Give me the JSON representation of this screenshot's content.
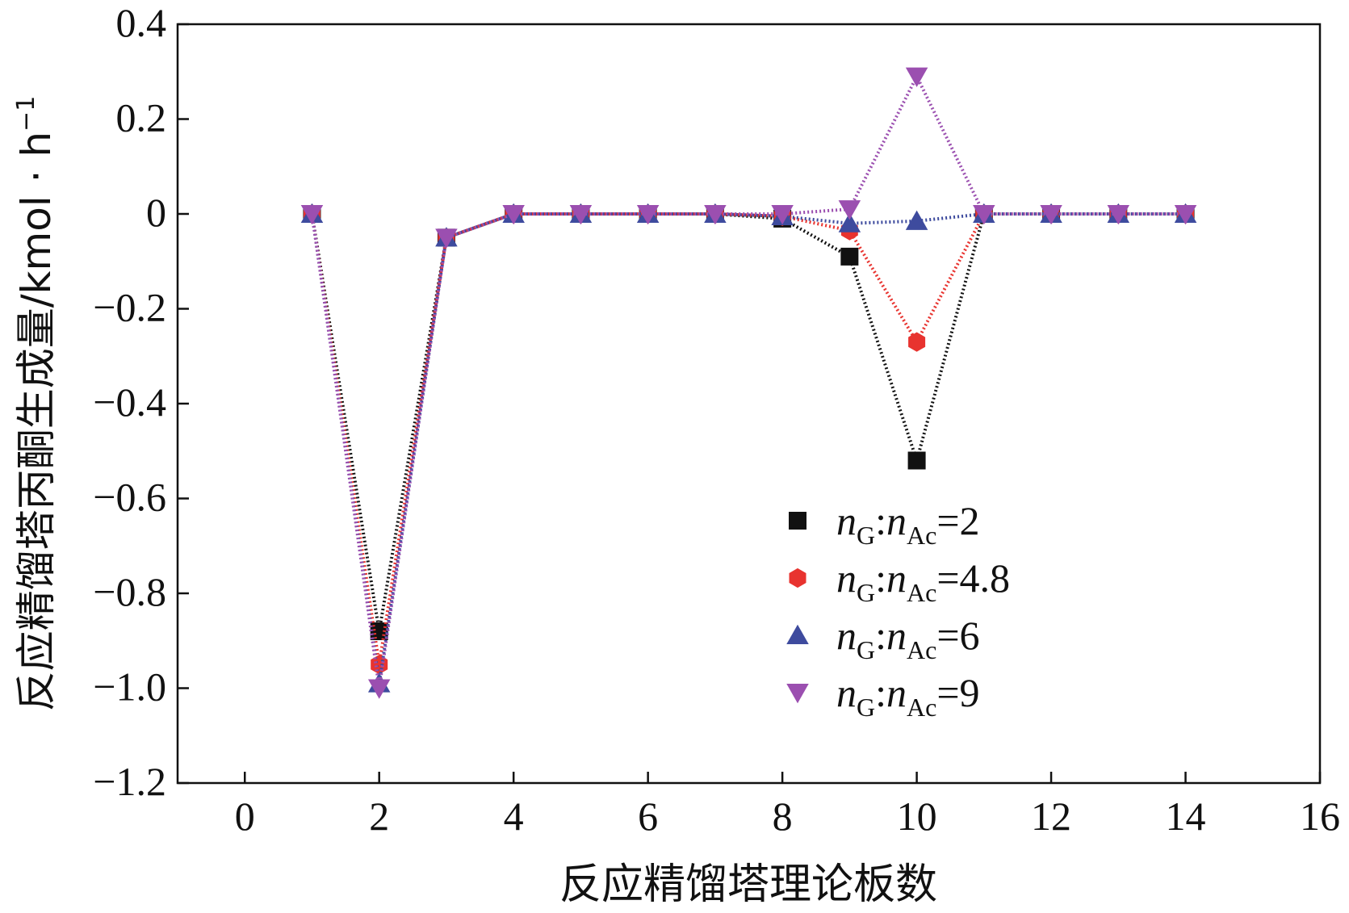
{
  "chart_data": {
    "type": "line",
    "xlabel": "反应精馏塔理论板数",
    "ylabel": "反应精馏塔丙酮生成量/kmol · h",
    "ylabel_sup": "−1",
    "xlim": [
      -1,
      16
    ],
    "ylim": [
      -1.2,
      0.4
    ],
    "x_ticks": [
      0,
      2,
      4,
      6,
      8,
      10,
      12,
      14,
      16
    ],
    "x_tick_labels": [
      "0",
      "2",
      "4",
      "6",
      "8",
      "10",
      "12",
      "14",
      "16"
    ],
    "y_ticks": [
      0.4,
      0.2,
      0,
      -0.2,
      -0.4,
      -0.6,
      -0.8,
      -1.0,
      -1.2
    ],
    "y_tick_labels": [
      "0.4",
      "0.2",
      "0",
      "−0.2",
      "−0.4",
      "−0.6",
      "−0.8",
      "−1.0",
      "−1.2"
    ],
    "x": [
      1,
      2,
      3,
      4,
      5,
      6,
      7,
      8,
      9,
      10,
      11,
      12,
      13,
      14
    ],
    "grid": false,
    "legend_position": "right-middle",
    "series": [
      {
        "name": "nG:nAc=2",
        "legend": {
          "n1": "n",
          "sub1": "G",
          "colon": ":",
          "n2": "n",
          "sub2": "Ac",
          "eq": "=2"
        },
        "color": "#111111",
        "marker": "square",
        "values": [
          0,
          -0.88,
          -0.05,
          0,
          0,
          0,
          0,
          -0.01,
          -0.09,
          -0.52,
          0,
          0,
          0,
          0
        ]
      },
      {
        "name": "nG:nAc=4.8",
        "legend": {
          "n1": "n",
          "sub1": "G",
          "colon": ":",
          "n2": "n",
          "sub2": "Ac",
          "eq": "=4.8"
        },
        "color": "#e8332f",
        "marker": "hexagon",
        "values": [
          0,
          -0.95,
          -0.05,
          0,
          0,
          0,
          0,
          -0.005,
          -0.035,
          -0.27,
          0,
          0,
          0,
          0
        ]
      },
      {
        "name": "nG:nAc=6",
        "legend": {
          "n1": "n",
          "sub1": "G",
          "colon": ":",
          "n2": "n",
          "sub2": "Ac",
          "eq": "=6"
        },
        "color": "#3e4b9e",
        "marker": "triangle-up",
        "values": [
          0,
          -0.99,
          -0.05,
          0,
          0,
          0,
          0,
          -0.005,
          -0.02,
          -0.015,
          0,
          0,
          0,
          0
        ]
      },
      {
        "name": "nG:nAc=9",
        "legend": {
          "n1": "n",
          "sub1": "G",
          "colon": ":",
          "n2": "n",
          "sub2": "Ac",
          "eq": "=9"
        },
        "color": "#9b4fb0",
        "marker": "triangle-down",
        "values": [
          0,
          -1.0,
          -0.05,
          0,
          0,
          0,
          0,
          0,
          0.01,
          0.29,
          0,
          0,
          0,
          0
        ]
      }
    ]
  }
}
